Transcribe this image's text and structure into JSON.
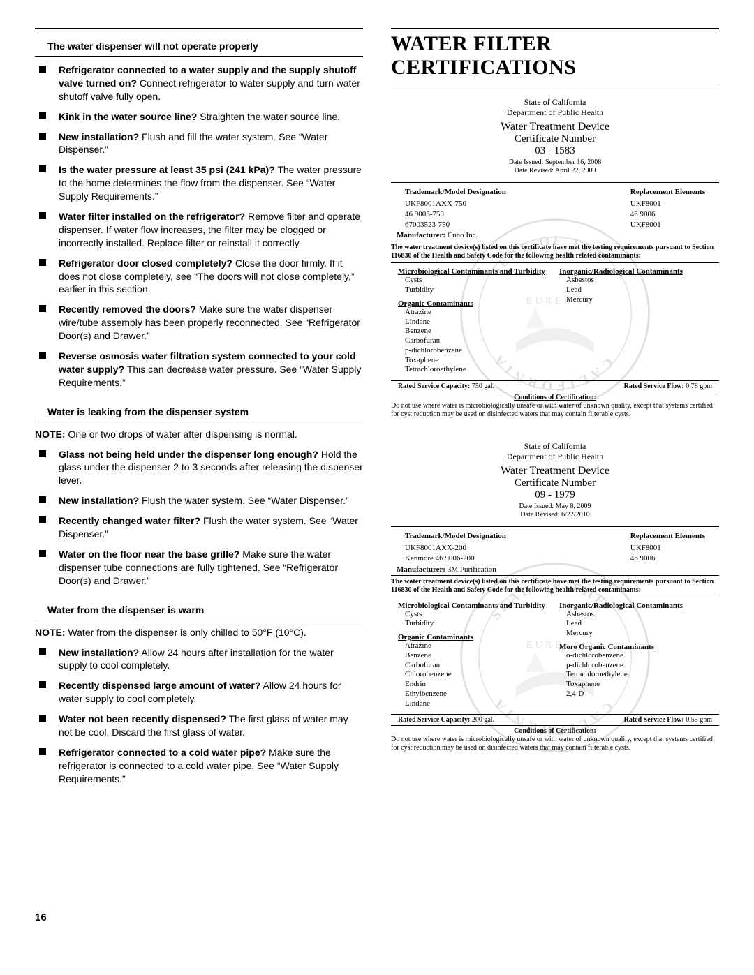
{
  "left": {
    "sections": [
      {
        "heading": "The water dispenser will not operate properly",
        "items": [
          {
            "q": "Refrigerator connected to a water supply and the supply shutoff valve turned on?",
            "a": "Connect refrigerator to water supply and turn water shutoff valve fully open."
          },
          {
            "q": "Kink in the water source line?",
            "a": "Straighten the water source line."
          },
          {
            "q": "New installation?",
            "a": "Flush and fill the water system. See “Water Dispenser.”"
          },
          {
            "q": "Is the water pressure at least 35 psi (241 kPa)?",
            "a": "The water pressure to the home determines the flow from the dispenser. See “Water Supply Requirements.”"
          },
          {
            "q": "Water filter installed on the refrigerator?",
            "a": "Remove filter and operate dispenser. If water flow increases, the filter may be clogged or incorrectly installed. Replace filter or reinstall it correctly."
          },
          {
            "q": "Refrigerator door closed completely?",
            "a": "Close the door firmly. If it does not close completely, see “The doors will not close completely,” earlier in this section."
          },
          {
            "q": "Recently removed the doors?",
            "a": "Make sure the water dispenser wire/tube assembly has been properly reconnected. See “Refrigerator Door(s) and Drawer.”"
          },
          {
            "q": "Reverse osmosis water filtration system connected to your cold water supply?",
            "a": "This can decrease water pressure. See “Water Supply Requirements.”"
          }
        ]
      },
      {
        "heading": "Water is leaking from the dispenser system",
        "note": "One or two drops of water after dispensing is normal.",
        "items": [
          {
            "q": "Glass not being held under the dispenser long enough?",
            "a": "Hold the glass under the dispenser 2 to 3 seconds after releasing the dispenser lever."
          },
          {
            "q": "New installation?",
            "a": "Flush the water system. See “Water Dispenser.”"
          },
          {
            "q": "Recently changed water filter?",
            "a": "Flush the water system. See “Water Dispenser.”"
          },
          {
            "q": "Water on the floor near the base grille?",
            "a": "Make sure the water dispenser tube connections are fully tightened. See “Refrigerator Door(s) and Drawer.”"
          }
        ]
      },
      {
        "heading": "Water from the dispenser is warm",
        "note": "Water from the dispenser is only chilled to 50°F (10°C).",
        "items": [
          {
            "q": "New installation?",
            "a": "Allow 24 hours after installation for the water supply to cool completely."
          },
          {
            "q": "Recently dispensed large amount of water?",
            "a": "Allow 24 hours for water supply to cool completely."
          },
          {
            "q": "Water not been recently dispensed?",
            "a": "The first glass of water may not be cool. Discard the first glass of water."
          },
          {
            "q": "Refrigerator connected to a cold water pipe?",
            "a": "Make sure the refrigerator is connected to a cold water pipe. See “Water Supply Requirements.”"
          }
        ]
      }
    ],
    "page_number": "16"
  },
  "right": {
    "title": "WATER FILTER CERTIFICATIONS",
    "certs": [
      {
        "state": "State of California",
        "dept": "Department of Public Health",
        "wtd": "Water Treatment Device",
        "cert_label": "Certificate Number",
        "cert_num": "03 - 1583",
        "date_issued": "Date Issued:  September 16, 2008",
        "date_revised": "Date Revised:  April 22, 2009",
        "model_head_l": "Trademark/Model Designation",
        "model_head_r": "Replacement Elements",
        "models_l": [
          "UKF8001AXX-750",
          "46 9006-750",
          "67003523-750"
        ],
        "models_r": [
          "UKF8001",
          "46 9006",
          "UKF8001"
        ],
        "mfr_label": "Manufacturer:",
        "mfr": "Cuno Inc.",
        "statement": "The water treatment device(s) listed on this certificate have met the testing requirements pursuant to Section 116830 of the Health and Safety Code for the following health related contaminants:",
        "contam": {
          "micro_h": "Microbiological Contaminants and Turbidity",
          "micro": [
            "Cysts",
            "Turbidity"
          ],
          "inorg_h": "Inorganic/Radiological Contaminants",
          "inorg": [
            "Asbestos",
            "Lead",
            "Mercury"
          ],
          "org_h": "Organic Contaminants",
          "org": [
            "Atrazine",
            "Lindane",
            "Benzene",
            "Carbofuran",
            "p-dichlorobenzene",
            "Toxaphene",
            "Tetrachloroethylene"
          ]
        },
        "svc_cap_l": "Rated Service Capacity:",
        "svc_cap_v": "750 gal.",
        "svc_flow_l": "Rated Service Flow:",
        "svc_flow_v": "0.78 gpm",
        "cond_title": "Conditions of Certification:",
        "cond_body": "Do not use where water is microbiologically unsafe or with water of unknown quality, except that systems certified for cyst reduction may be used on disinfected waters that may contain filterable cysts."
      },
      {
        "state": "State of California",
        "dept": "Department of Public Health",
        "wtd": "Water Treatment Device",
        "cert_label": "Certificate Number",
        "cert_num": "09 - 1979",
        "date_issued": "Date Issued:  May 8, 2009",
        "date_revised": "Date Revised:  6/22/2010",
        "model_head_l": "Trademark/Model Designation",
        "model_head_r": "Replacement Elements",
        "models_l": [
          "UKF8001AXX-200",
          "Kenmore 46 9006-200"
        ],
        "models_r": [
          "UKF8001",
          "46 9006"
        ],
        "mfr_label": "Manufacturer:",
        "mfr": "3M Purification",
        "statement": "The water treatment device(s) listed on this certificate have met the testing requirements pursuant to Section 116830 of the Health and Safety Code for the following health related contaminants:",
        "contam": {
          "micro_h": "Microbiological Contaminants and Turbidity",
          "micro": [
            "Cysts",
            "Turbidity"
          ],
          "inorg_h": "Inorganic/Radiological Contaminants",
          "inorg": [
            "Asbestos",
            "Lead",
            "Mercury"
          ],
          "org_h": "Organic Contaminants",
          "org": [
            "Atrazine",
            "Benzene",
            "Carbofuran",
            "Chlorobenzene",
            "Endrin",
            "Ethylbenzene",
            "Lindane"
          ],
          "more_h": "More Organic Contaminants",
          "more": [
            "o-dichlorobenzene",
            "p-dichlorobenzene",
            "Tetrachloroethylene",
            "Toxaphene",
            "2,4-D"
          ]
        },
        "svc_cap_l": "Rated Service Capacity:",
        "svc_cap_v": "200 gal.",
        "svc_flow_l": "Rated Service Flow:",
        "svc_flow_v": "0.55 gpm",
        "cond_title": "Conditions of Certification:",
        "cond_body": "Do not use where water is microbiologically unsafe or with water of unknown quality, except that systems certified for cyst reduction may be used on disinfected waters that may contain filterable cysts."
      }
    ]
  }
}
